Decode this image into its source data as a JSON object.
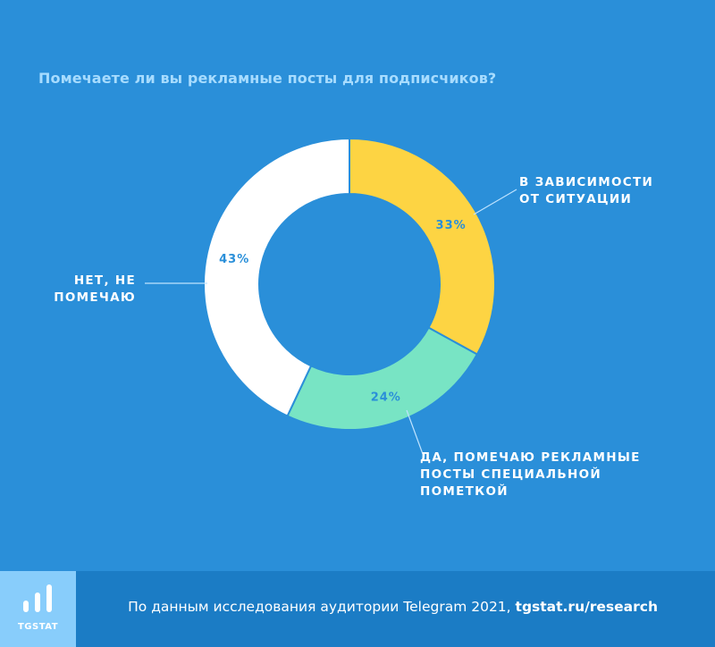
{
  "title": "Помечаете ли вы рекламные посты для подписчиков?",
  "colors": {
    "background": "#2a8fd9",
    "title": "#a7dcff",
    "yellow": "#fdd443",
    "mint": "#78e4c4",
    "white": "#ffffff",
    "percent_text": "#2a8fd9",
    "label_text": "#ffffff"
  },
  "chart_data": {
    "type": "pie",
    "variant": "donut",
    "title": "Помечаете ли вы рекламные посты для подписчиков?",
    "categories": [
      "В ЗАВИСИМОСТИ ОТ СИТУАЦИИ",
      "ДА, ПОМЕЧАЮ РЕКЛАМНЫЕ ПОСТЫ СПЕЦИАЛЬНОЙ ПОМЕТКОЙ",
      "НЕТ, НЕ ПОМЕЧАЮ"
    ],
    "values": [
      33,
      24,
      43
    ],
    "unit": "%",
    "slices": [
      {
        "label_lines": [
          "В ЗАВИСИМОСТИ",
          "ОТ СИТУАЦИИ"
        ],
        "value": 33,
        "value_label": "33%",
        "color": "#fdd443"
      },
      {
        "label_lines": [
          "ДА, ПОМЕЧАЮ РЕКЛАМНЫЕ",
          "ПОСТЫ СПЕЦИАЛЬНОЙ",
          "ПОМЕТКОЙ"
        ],
        "value": 24,
        "value_label": "24%",
        "color": "#78e4c4"
      },
      {
        "label_lines": [
          "НЕТ, НЕ",
          "ПОМЕЧАЮ"
        ],
        "value": 43,
        "value_label": "43%",
        "color": "#ffffff"
      }
    ]
  },
  "footer": {
    "logo_text": "TGSTAT",
    "text": "По данным исследования аудитории Telegram 2021, ",
    "link": "tgstat.ru/research"
  }
}
